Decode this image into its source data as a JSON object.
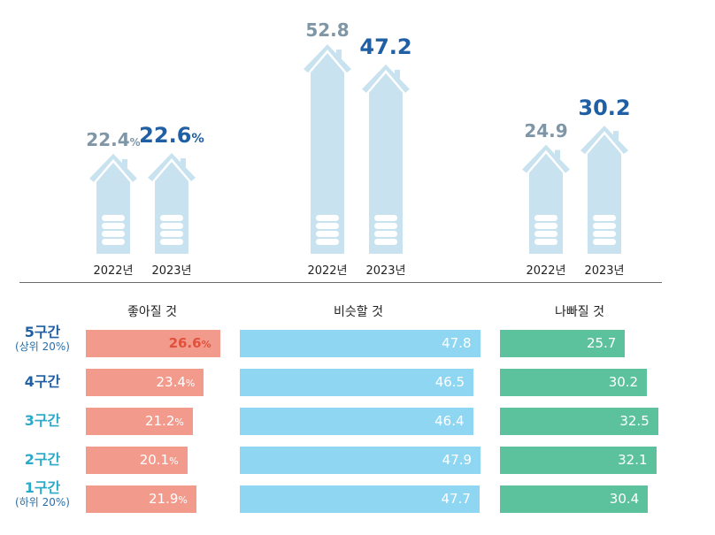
{
  "chart_data": [
    {
      "type": "bar",
      "groups": [
        {
          "name": "좋아질 것",
          "values": [
            {
              "year": "2022년",
              "value": 22.4,
              "label": "22.4",
              "unit": "%"
            },
            {
              "year": "2023년",
              "value": 22.6,
              "label": "22.6",
              "unit": "%"
            }
          ]
        },
        {
          "name": "비슷할 것",
          "values": [
            {
              "year": "2022년",
              "value": 52.8,
              "label": "52.8",
              "unit": ""
            },
            {
              "year": "2023년",
              "value": 47.2,
              "label": "47.2",
              "unit": ""
            }
          ]
        },
        {
          "name": "나빠질 것",
          "values": [
            {
              "year": "2022년",
              "value": 24.9,
              "label": "24.9",
              "unit": ""
            },
            {
              "year": "2023년",
              "value": 30.2,
              "label": "30.2",
              "unit": ""
            }
          ]
        }
      ],
      "colors": {
        "year_2022": "#7f96a6",
        "year_2023": "#1f5fa4",
        "house": "#c9e2ef",
        "coin": "#ffffff"
      }
    },
    {
      "type": "bar",
      "orientation": "horizontal",
      "categories": [
        {
          "name": "5구간",
          "sub": "(상위 20%)"
        },
        {
          "name": "4구간",
          "sub": ""
        },
        {
          "name": "3구간",
          "sub": ""
        },
        {
          "name": "2구간",
          "sub": ""
        },
        {
          "name": "1구간",
          "sub": "(하위 20%)"
        }
      ],
      "series": [
        {
          "name": "좋아질 것",
          "color": "#f29b8c",
          "values": [
            26.6,
            23.4,
            21.2,
            20.1,
            21.9
          ],
          "labels": [
            "26.6",
            "23.4",
            "21.2",
            "20.1",
            "21.9"
          ],
          "unit": "%"
        },
        {
          "name": "비슷할 것",
          "color": "#8ed6f2",
          "values": [
            47.8,
            46.5,
            46.4,
            47.9,
            47.7
          ],
          "labels": [
            "47.8",
            "46.5",
            "46.4",
            "47.9",
            "47.7"
          ],
          "unit": ""
        },
        {
          "name": "나빠질 것",
          "color": "#5cc29e",
          "values": [
            25.7,
            30.2,
            32.5,
            32.1,
            30.4
          ],
          "labels": [
            "25.7",
            "30.2",
            "32.5",
            "32.1",
            "30.4"
          ],
          "unit": ""
        }
      ],
      "highlight": {
        "row": 0,
        "series": 0,
        "label_color": "#e0503c"
      },
      "category_colors": [
        "#1f5fa4",
        "#1f5fa4",
        "#2aa9c9",
        "#2aa9c9",
        "#2aa9c9"
      ]
    }
  ]
}
